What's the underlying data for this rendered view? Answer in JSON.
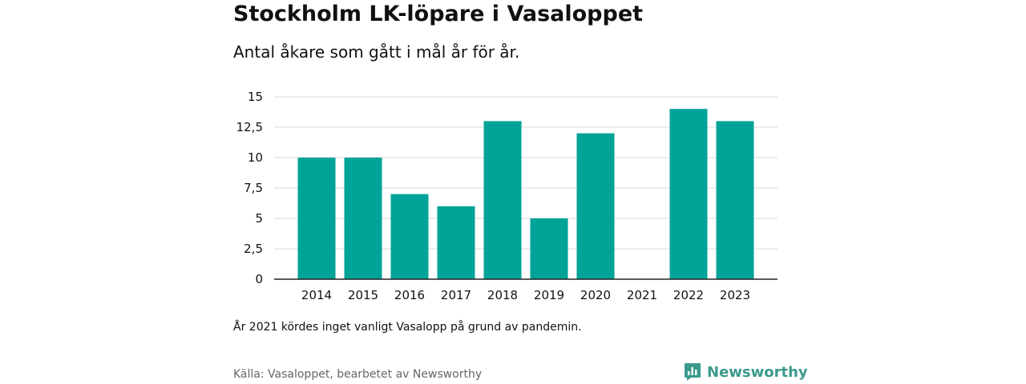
{
  "header": {
    "title": "Stockholm LK-löpare i Vasaloppet",
    "subtitle": "Antal åkare som gått i mål år för år."
  },
  "footer": {
    "note": "År 2021 kördes inget vanligt Vasalopp på grund av pandemin.",
    "source": "Källa: Vasaloppet, bearbetet av Newsworthy",
    "brand": "Newsworthy",
    "brand_icon": "newsworthy-logo-icon"
  },
  "colors": {
    "bar": "#00a398",
    "grid": "#d8d8d8",
    "axis": "#222222",
    "brand": "#3a9a8c"
  },
  "chart_data": {
    "type": "bar",
    "categories": [
      "2014",
      "2015",
      "2016",
      "2017",
      "2018",
      "2019",
      "2020",
      "2021",
      "2022",
      "2023"
    ],
    "values": [
      10,
      10,
      7,
      6,
      13,
      5,
      12,
      0,
      14,
      13
    ],
    "ylim": [
      0,
      15
    ],
    "yticks": [
      0,
      2.5,
      5,
      7.5,
      10,
      12.5,
      15
    ],
    "ytick_labels": [
      "0",
      "2,5",
      "5",
      "7,5",
      "10",
      "12,5",
      "15"
    ],
    "grid": true,
    "legend": "none",
    "title": "",
    "xlabel": "",
    "ylabel": ""
  }
}
